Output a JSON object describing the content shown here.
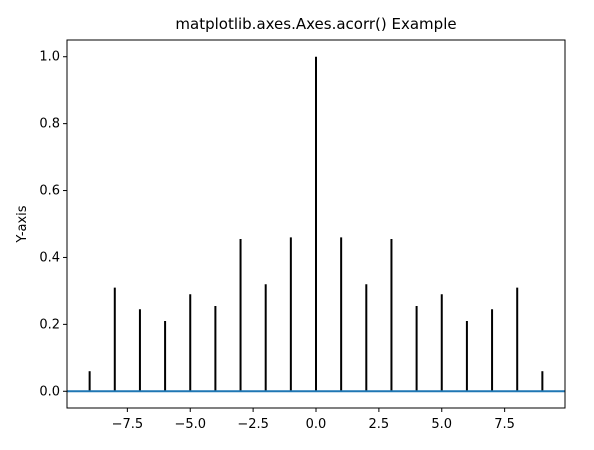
{
  "chart_data": {
    "type": "bar",
    "subtype": "stem",
    "title": "matplotlib.axes.Axes.acorr() Example",
    "xlabel": "",
    "ylabel": "Y-axis",
    "xlim": [
      -9.9,
      9.9
    ],
    "ylim": [
      -0.05,
      1.05
    ],
    "grid": false,
    "xticks": [
      -7.5,
      -5.0,
      -2.5,
      0.0,
      2.5,
      5.0,
      7.5
    ],
    "xtick_labels": [
      "−7.5",
      "−5.0",
      "−2.5",
      "0.0",
      "2.5",
      "5.0",
      "7.5"
    ],
    "yticks": [
      0.0,
      0.2,
      0.4,
      0.6,
      0.8,
      1.0
    ],
    "ytick_labels": [
      "0.0",
      "0.2",
      "0.4",
      "0.6",
      "0.8",
      "1.0"
    ],
    "x": [
      -9,
      -8,
      -7,
      -6,
      -5,
      -4,
      -3,
      -2,
      -1,
      0,
      1,
      2,
      3,
      4,
      5,
      6,
      7,
      8,
      9
    ],
    "values": [
      0.06,
      0.31,
      0.245,
      0.21,
      0.29,
      0.255,
      0.455,
      0.32,
      0.46,
      1.0,
      0.46,
      0.32,
      0.455,
      0.255,
      0.29,
      0.21,
      0.245,
      0.31,
      0.06
    ],
    "baseline": 0.0,
    "colors": {
      "stems": "#000000",
      "baseline": "#1f77b4",
      "axes": "#000000"
    }
  }
}
